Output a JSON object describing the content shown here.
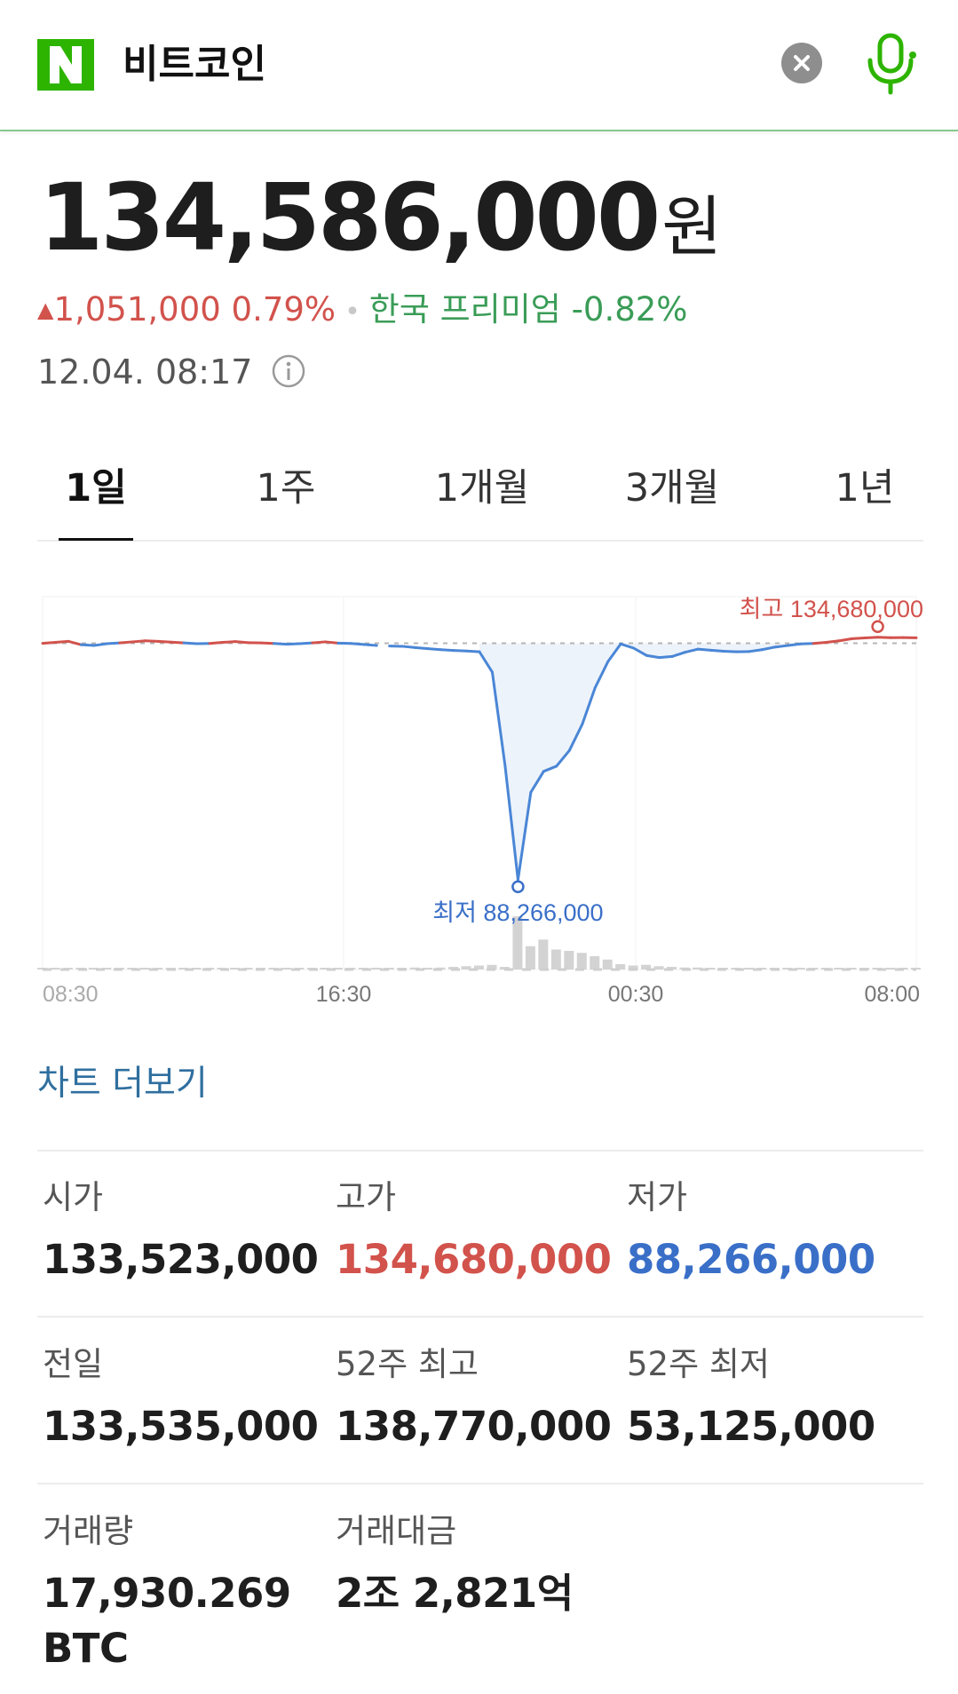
{
  "search": {
    "query": "비트코인"
  },
  "quote": {
    "price": "134,586,000",
    "unit": "원",
    "change_amount": "1,051,000",
    "change_percent": "0.79%",
    "premium_label": "한국 프리미엄",
    "premium_value": "-0.82%",
    "timestamp": "12.04. 08:17"
  },
  "tabs": [
    {
      "label": "1일",
      "active": true
    },
    {
      "label": "1주",
      "active": false
    },
    {
      "label": "1개월",
      "active": false
    },
    {
      "label": "3개월",
      "active": false
    },
    {
      "label": "1년",
      "active": false
    }
  ],
  "chart_data": {
    "type": "line",
    "x_ticks": [
      "08:30",
      "16:30",
      "00:30",
      "08:00"
    ],
    "high_label": "최고 134,680,000",
    "low_label": "최저 88,266,000",
    "prev_close": 133535000,
    "ylim": [
      85000000,
      136000000
    ],
    "x": [
      0,
      1,
      2,
      3,
      4,
      5,
      6,
      7,
      8,
      9,
      10,
      11,
      12,
      13,
      14,
      15,
      16,
      17,
      18,
      19,
      20,
      21,
      22,
      23,
      24,
      25,
      26,
      27,
      28,
      29,
      30,
      31,
      32,
      33,
      34,
      35,
      36,
      37,
      38,
      39,
      40,
      41,
      42,
      43,
      44,
      45,
      46,
      47,
      48,
      49,
      50,
      51,
      52,
      53,
      54,
      55,
      56,
      57,
      58,
      59,
      60,
      61,
      62,
      63,
      64,
      65,
      66,
      67,
      68
    ],
    "values": [
      133523000,
      133700000,
      133900000,
      133250000,
      133100000,
      133450000,
      133600000,
      133800000,
      134000000,
      133900000,
      133750000,
      133600000,
      133450000,
      133500000,
      133700000,
      133850000,
      133650000,
      133600000,
      133500000,
      133350000,
      133450000,
      133600000,
      133800000,
      133550000,
      133500000,
      133300000,
      133100000,
      133000000,
      132950000,
      132700000,
      132500000,
      132300000,
      132150000,
      132050000,
      131900000,
      128000000,
      110000000,
      88266000,
      105000000,
      109000000,
      110000000,
      113000000,
      118000000,
      125000000,
      130000000,
      133400000,
      132600000,
      131200000,
      130800000,
      131000000,
      131800000,
      132400000,
      132200000,
      132000000,
      131900000,
      131950000,
      132300000,
      132800000,
      133100000,
      133400000,
      133500000,
      133700000,
      134000000,
      134400000,
      134550000,
      134680000,
      134600000,
      134620000,
      134586000
    ],
    "volume": [
      2,
      2,
      1,
      2,
      1,
      2,
      1,
      2,
      1,
      2,
      1,
      1,
      2,
      1,
      2,
      1,
      2,
      1,
      2,
      1,
      2,
      2,
      1,
      2,
      1,
      2,
      1,
      1,
      2,
      3,
      2,
      3,
      4,
      5,
      6,
      7,
      4,
      80,
      35,
      45,
      30,
      28,
      25,
      20,
      15,
      8,
      6,
      7,
      5,
      4,
      3,
      3,
      2,
      2,
      2,
      2,
      2,
      1,
      2,
      1,
      2,
      2,
      1,
      1,
      2,
      1,
      2,
      2,
      1
    ]
  },
  "more_chart_label": "차트 더보기",
  "stats": [
    {
      "label": "시가",
      "value": "133,523,000",
      "tone": ""
    },
    {
      "label": "고가",
      "value": "134,680,000",
      "tone": "red"
    },
    {
      "label": "저가",
      "value": "88,266,000",
      "tone": "blue"
    },
    {
      "label": "전일",
      "value": "133,535,000",
      "tone": ""
    },
    {
      "label": "52주 최고",
      "value": "138,770,000",
      "tone": ""
    },
    {
      "label": "52주 최저",
      "value": "53,125,000",
      "tone": ""
    },
    {
      "label": "거래량",
      "value": "17,930.269",
      "value2": "BTC",
      "tone": ""
    },
    {
      "label": "거래대금",
      "value": "2조 2,821억",
      "tone": ""
    }
  ],
  "colors": {
    "up": "#d2524c",
    "down": "#3a6fc8",
    "premium": "#3a9c57",
    "brand": "#2db400"
  }
}
